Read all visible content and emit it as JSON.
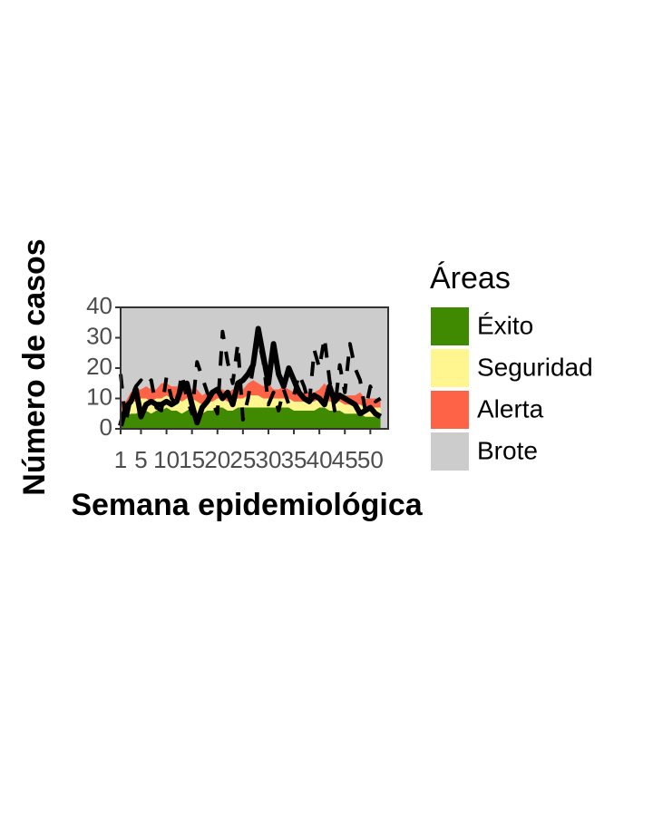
{
  "chart_data": {
    "type": "endemic-channel",
    "x_label": "Semana epidemiológica",
    "y_label": "Número de casos",
    "legend_title": "Áreas",
    "x": [
      1,
      2,
      3,
      4,
      5,
      6,
      7,
      8,
      9,
      10,
      11,
      12,
      13,
      14,
      15,
      16,
      17,
      18,
      19,
      20,
      21,
      22,
      23,
      24,
      25,
      26,
      27,
      28,
      29,
      30,
      31,
      32,
      33,
      34,
      35,
      36,
      37,
      38,
      39,
      40,
      41,
      42,
      43,
      44,
      45,
      46,
      47,
      48,
      49,
      50,
      51,
      52
    ],
    "xlim": [
      1,
      53.5
    ],
    "xticks": [
      1,
      5,
      10,
      15,
      20,
      25,
      30,
      35,
      40,
      45,
      50
    ],
    "ylim": [
      0,
      40
    ],
    "yticks": [
      0,
      10,
      20,
      30,
      40
    ],
    "areas": [
      {
        "name": "Éxito",
        "color": "#3f8a00",
        "values": [
          3,
          4,
          5,
          5,
          6,
          6,
          5,
          6,
          6,
          7,
          6,
          6,
          5,
          6,
          7,
          5,
          5,
          6,
          6,
          7,
          7,
          6,
          6,
          7,
          7,
          7,
          7,
          7,
          7,
          7,
          7,
          7,
          7,
          7,
          6,
          6,
          6,
          6,
          6,
          7,
          7,
          6,
          6,
          6,
          5,
          5,
          5,
          5,
          4,
          4,
          4,
          4
        ]
      },
      {
        "name": "Seguridad",
        "color": "#fff68f",
        "values": [
          3,
          3,
          4,
          4,
          4,
          4,
          4,
          4,
          4,
          4,
          4,
          4,
          4,
          4,
          3,
          4,
          3,
          3,
          3,
          3,
          3,
          3,
          3,
          3,
          3,
          4,
          4,
          4,
          3,
          3,
          3,
          3,
          3,
          3,
          3,
          3,
          3,
          3,
          3,
          3,
          3,
          3,
          3,
          3,
          3,
          3,
          3,
          3,
          3,
          3,
          3,
          3
        ]
      },
      {
        "name": "Alerta",
        "color": "#ff6347",
        "values": [
          3,
          2,
          3,
          4,
          3,
          4,
          4,
          3,
          5,
          4,
          4,
          4,
          4,
          3,
          3,
          4,
          3,
          3,
          3,
          3,
          3,
          3,
          4,
          3,
          3,
          4,
          5,
          4,
          4,
          5,
          3,
          3,
          4,
          3,
          3,
          3,
          3,
          3,
          3,
          3,
          5,
          4,
          3,
          3,
          3,
          3,
          3,
          4,
          3,
          3,
          3,
          3
        ]
      },
      {
        "name": "Brote",
        "color": "#cccccc"
      }
    ],
    "lines": [
      {
        "color": "#000000",
        "dashed": false,
        "values": [
          1,
          7,
          9,
          13,
          4,
          8,
          9,
          8,
          8,
          9,
          8,
          9,
          14,
          15,
          8,
          2,
          7,
          9,
          12,
          13,
          10,
          12,
          8,
          15,
          16,
          18,
          21,
          33,
          24,
          15,
          28,
          18,
          14,
          20,
          16,
          12,
          10,
          9,
          11,
          10,
          8,
          14,
          9,
          11,
          10,
          9,
          8,
          5,
          6,
          7,
          5,
          4
        ]
      },
      {
        "color": "#000000",
        "dashed": true,
        "values": [
          18,
          2,
          10,
          14,
          16,
          14,
          16,
          7,
          6,
          17,
          10,
          8,
          18,
          10,
          5,
          22,
          17,
          12,
          9,
          5,
          32,
          22,
          15,
          28,
          3,
          10,
          20,
          30,
          22,
          8,
          12,
          6,
          13,
          8,
          11,
          18,
          14,
          8,
          26,
          20,
          30,
          16,
          6,
          21,
          12,
          28,
          20,
          16,
          6,
          14,
          9,
          10
        ]
      }
    ]
  }
}
